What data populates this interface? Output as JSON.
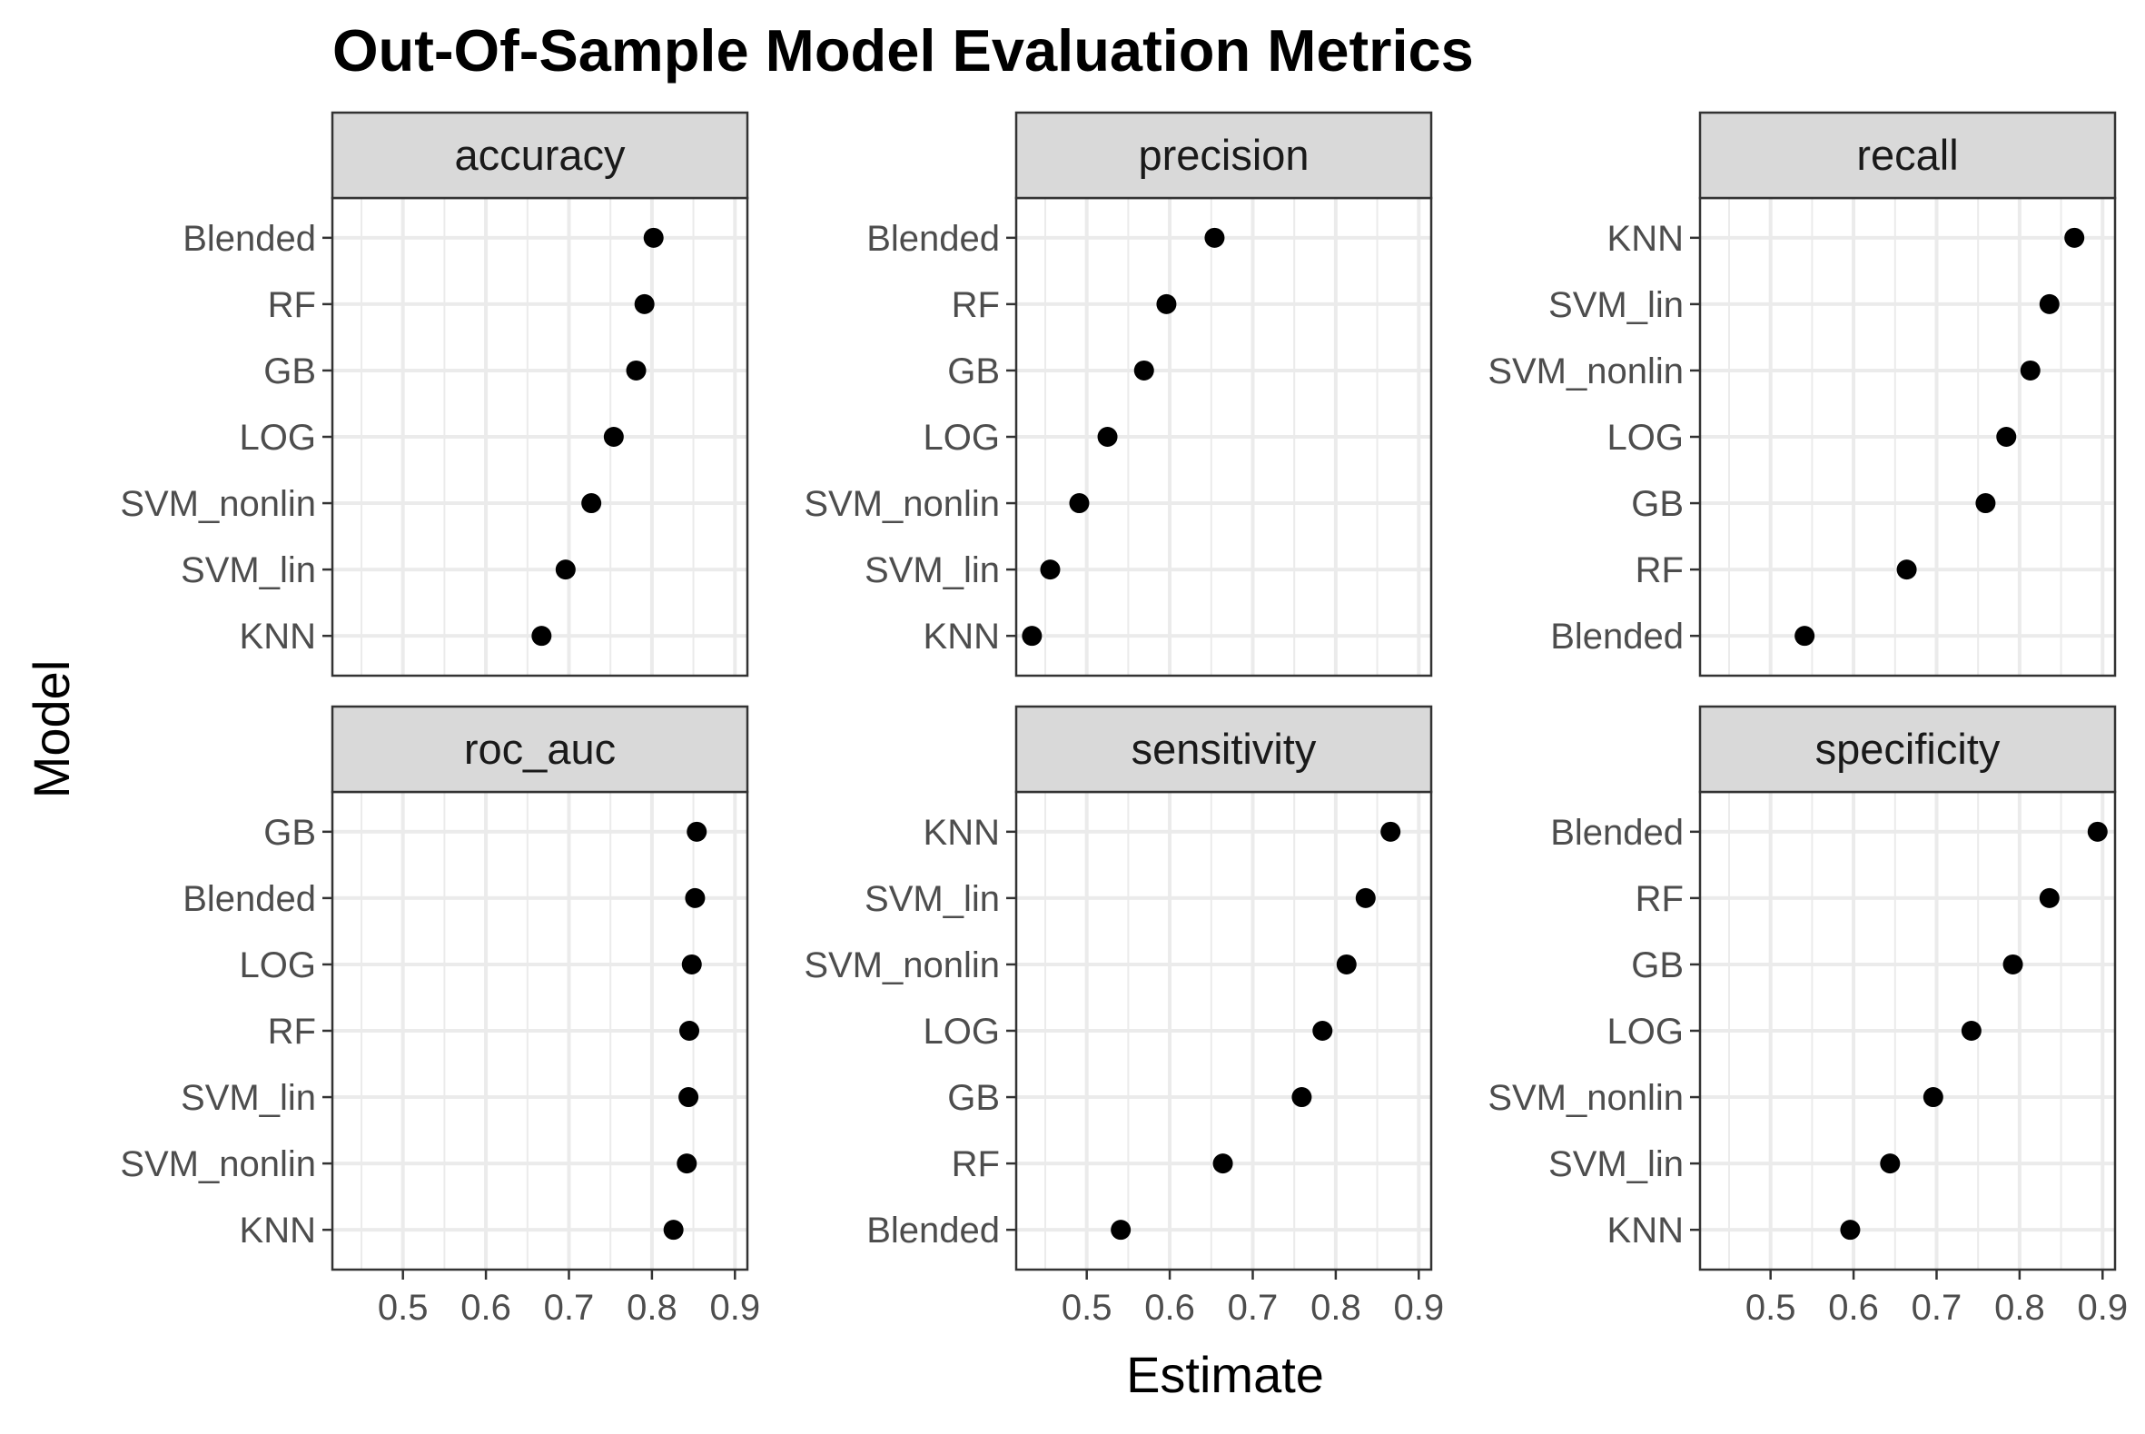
{
  "chart_data": {
    "type": "scatter",
    "title": "Out-Of-Sample Model Evaluation Metrics",
    "xlabel": "Estimate",
    "ylabel": "Model",
    "xlim": [
      0.415,
      0.915
    ],
    "x_ticks": [
      0.5,
      0.6,
      0.7,
      0.8,
      0.9
    ],
    "x_tick_labels": [
      "0.5",
      "0.6",
      "0.7",
      "0.8",
      "0.9"
    ],
    "grid": true,
    "legend": "none",
    "colors": {
      "point": "#000000",
      "strip_fill": "#d9d9d9",
      "grid": "#ebebeb",
      "panel_border": "#333333"
    },
    "panels": [
      {
        "metric": "accuracy",
        "models": [
          "Blended",
          "RF",
          "GB",
          "LOG",
          "SVM_nonlin",
          "SVM_lin",
          "KNN"
        ],
        "values": [
          0.802,
          0.791,
          0.781,
          0.754,
          0.727,
          0.696,
          0.667
        ]
      },
      {
        "metric": "precision",
        "models": [
          "Blended",
          "RF",
          "GB",
          "LOG",
          "SVM_nonlin",
          "SVM_lin",
          "KNN"
        ],
        "values": [
          0.654,
          0.596,
          0.569,
          0.525,
          0.491,
          0.456,
          0.434
        ]
      },
      {
        "metric": "recall",
        "models": [
          "KNN",
          "SVM_lin",
          "SVM_nonlin",
          "LOG",
          "GB",
          "RF",
          "Blended"
        ],
        "values": [
          0.866,
          0.836,
          0.813,
          0.784,
          0.759,
          0.664,
          0.541
        ]
      },
      {
        "metric": "roc_auc",
        "models": [
          "GB",
          "Blended",
          "LOG",
          "RF",
          "SVM_lin",
          "SVM_nonlin",
          "KNN"
        ],
        "values": [
          0.854,
          0.852,
          0.848,
          0.845,
          0.844,
          0.842,
          0.826
        ]
      },
      {
        "metric": "sensitivity",
        "models": [
          "KNN",
          "SVM_lin",
          "SVM_nonlin",
          "LOG",
          "GB",
          "RF",
          "Blended"
        ],
        "values": [
          0.866,
          0.836,
          0.813,
          0.784,
          0.759,
          0.664,
          0.541
        ]
      },
      {
        "metric": "specificity",
        "models": [
          "Blended",
          "RF",
          "GB",
          "LOG",
          "SVM_nonlin",
          "SVM_lin",
          "KNN"
        ],
        "values": [
          0.894,
          0.836,
          0.792,
          0.742,
          0.696,
          0.644,
          0.596
        ]
      }
    ]
  }
}
